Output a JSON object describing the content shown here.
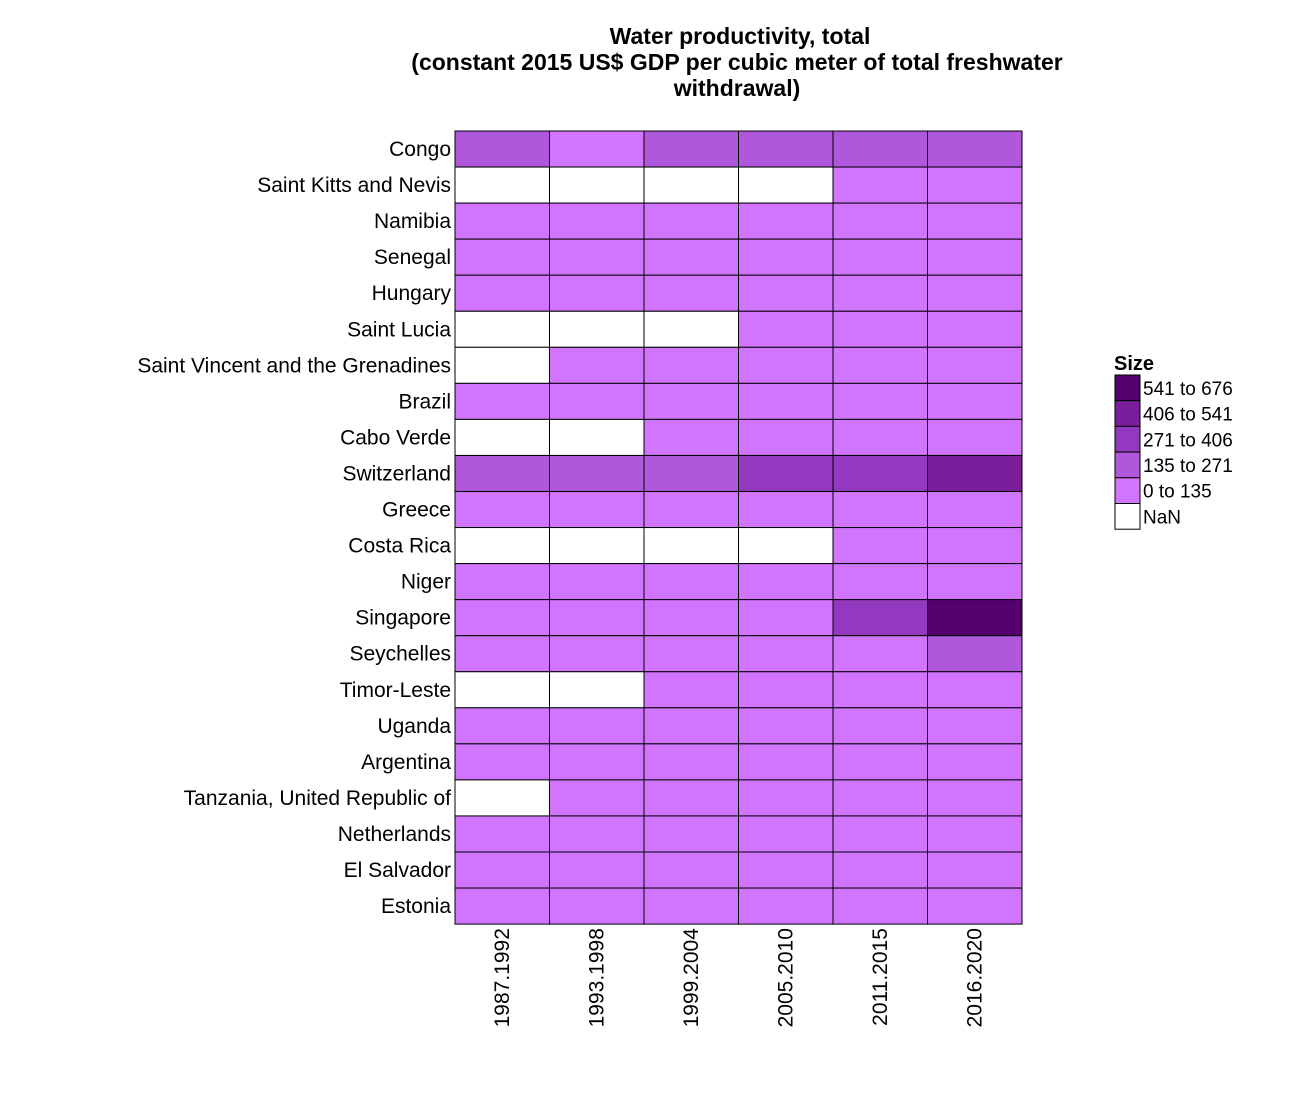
{
  "chart_data": {
    "type": "heatmap",
    "title": [
      "Water productivity, total",
      "(constant 2015 US$ GDP per cubic meter of total freshwater",
      "withdrawal)"
    ],
    "columns": [
      "1987.1992",
      "1993.1998",
      "1999.2004",
      "2005.2010",
      "2011.2015",
      "2016.2020"
    ],
    "rows": [
      "Congo",
      "Saint Kitts and Nevis",
      "Namibia",
      "Senegal",
      "Hungary",
      "Saint Lucia",
      "Saint Vincent and the Grenadines",
      "Brazil",
      "Cabo Verde",
      "Switzerland",
      "Greece",
      "Costa Rica",
      "Niger",
      "Singapore",
      "Seychelles",
      "Timor-Leste",
      "Uganda",
      "Argentina",
      "Tanzania, United Republic of",
      "Netherlands",
      "El Salvador",
      "Estonia"
    ],
    "bins": [
      [
        1,
        0,
        1,
        1,
        1,
        1
      ],
      [
        null,
        null,
        null,
        null,
        0,
        0
      ],
      [
        0,
        0,
        0,
        0,
        0,
        0
      ],
      [
        0,
        0,
        0,
        0,
        0,
        0
      ],
      [
        0,
        0,
        0,
        0,
        0,
        0
      ],
      [
        null,
        null,
        null,
        0,
        0,
        0
      ],
      [
        null,
        0,
        0,
        0,
        0,
        0
      ],
      [
        0,
        0,
        0,
        0,
        0,
        0
      ],
      [
        null,
        null,
        0,
        0,
        0,
        0
      ],
      [
        1,
        1,
        1,
        2,
        2,
        3
      ],
      [
        0,
        0,
        0,
        0,
        0,
        0
      ],
      [
        null,
        null,
        null,
        null,
        0,
        0
      ],
      [
        0,
        0,
        0,
        0,
        0,
        0
      ],
      [
        0,
        0,
        0,
        0,
        2,
        4
      ],
      [
        0,
        0,
        0,
        0,
        0,
        1
      ],
      [
        null,
        null,
        0,
        0,
        0,
        0
      ],
      [
        0,
        0,
        0,
        0,
        0,
        0
      ],
      [
        0,
        0,
        0,
        0,
        0,
        0
      ],
      [
        null,
        0,
        0,
        0,
        0,
        0
      ],
      [
        0,
        0,
        0,
        0,
        0,
        0
      ],
      [
        0,
        0,
        0,
        0,
        0,
        0
      ],
      [
        0,
        0,
        0,
        0,
        0,
        0
      ]
    ],
    "legend": {
      "title": "Size",
      "placement": "right",
      "entries": [
        {
          "label": "541 to 676",
          "color": "#54006E",
          "bin": 4
        },
        {
          "label": "406 to 541",
          "color": "#7A1E9B",
          "bin": 3
        },
        {
          "label": "271 to 406",
          "color": "#9339BF",
          "bin": 2
        },
        {
          "label": "135 to 271",
          "color": "#AF58DC",
          "bin": 1
        },
        {
          "label": "0 to 135",
          "color": "#D175FE",
          "bin": 0
        },
        {
          "label": "NaN",
          "color": "#FFFFFF",
          "bin": null
        }
      ]
    }
  }
}
